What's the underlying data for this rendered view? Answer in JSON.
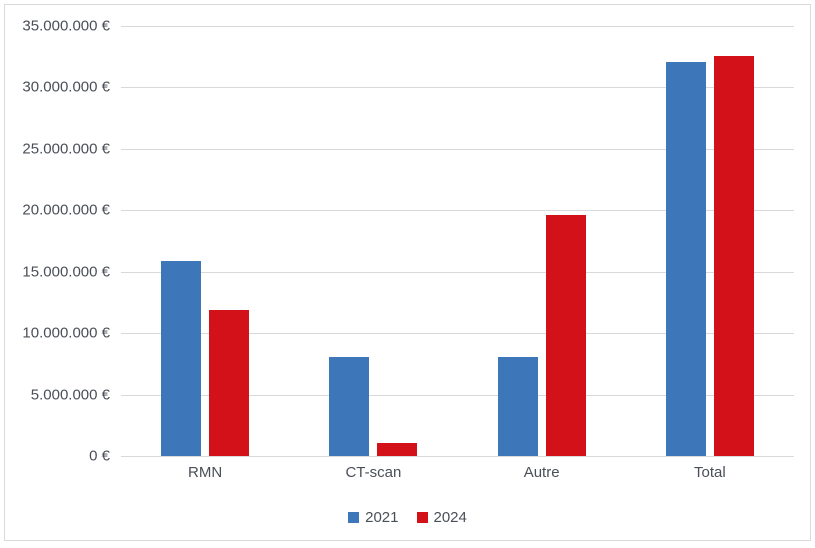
{
  "chart_data": {
    "type": "bar",
    "title": "",
    "xlabel": "",
    "ylabel": "",
    "categories": [
      "RMN",
      "CT-scan",
      "Autre",
      "Total"
    ],
    "series": [
      {
        "name": "2021",
        "color": "#3d76b9",
        "values": [
          15900000,
          8100000,
          8100000,
          32100000
        ]
      },
      {
        "name": "2024",
        "color": "#d21118",
        "values": [
          11900000,
          1050000,
          19600000,
          32550000
        ]
      }
    ],
    "ylim": [
      0,
      35000000
    ],
    "ytick_step": 5000000,
    "ytick_labels": [
      "0 €",
      "5.000.000 €",
      "10.000.000 €",
      "15.000.000 €",
      "20.000.000 €",
      "25.000.000 €",
      "30.000.000 €",
      "35.000.000 €"
    ],
    "currency_suffix": "€",
    "grid": true,
    "legend_position": "bottom",
    "styles": {
      "gridline_color": "#d9d9d9",
      "axis_line_color": "#d9d9d9",
      "frame_border_color": "#d9d9d9",
      "text_color": "#4a4f57",
      "background": "#ffffff"
    }
  }
}
